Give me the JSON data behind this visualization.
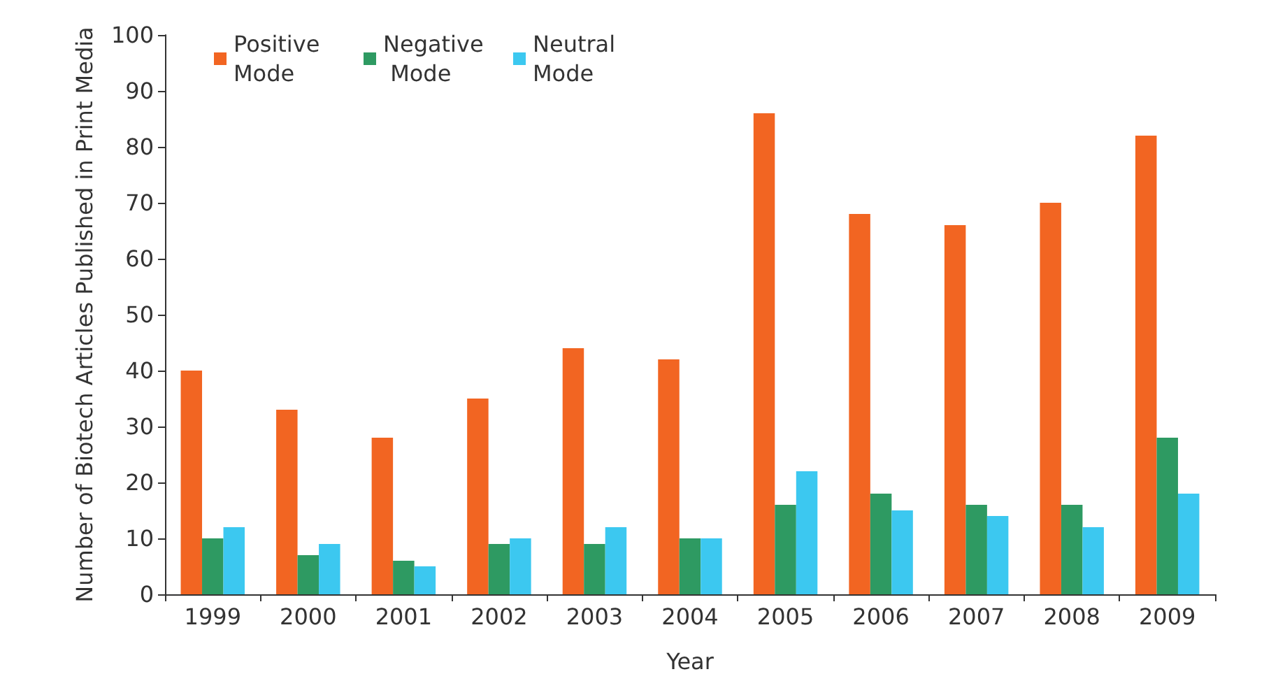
{
  "chart_data": {
    "type": "bar",
    "xlabel": "Year",
    "ylabel": "Number of Biotech Articles Published in Print Media",
    "categories": [
      "1999",
      "2000",
      "2001",
      "2002",
      "2003",
      "2004",
      "2005",
      "2006",
      "2007",
      "2008",
      "2009"
    ],
    "series": [
      {
        "name": "Positive Mode",
        "color": "#f26522",
        "values": [
          40,
          33,
          28,
          35,
          44,
          42,
          86,
          68,
          66,
          70,
          82
        ]
      },
      {
        "name": "Negative Mode",
        "color": "#2e9a62",
        "values": [
          10,
          7,
          6,
          9,
          9,
          10,
          16,
          18,
          16,
          16,
          28
        ]
      },
      {
        "name": "Neutral Mode",
        "color": "#3cc8f0",
        "values": [
          12,
          9,
          5,
          10,
          12,
          10,
          22,
          15,
          14,
          12,
          18
        ]
      }
    ],
    "ylim": [
      0,
      100
    ],
    "yticks": [
      0,
      10,
      20,
      30,
      40,
      50,
      60,
      70,
      80,
      90,
      100
    ],
    "grid": false,
    "legend": "top left"
  }
}
